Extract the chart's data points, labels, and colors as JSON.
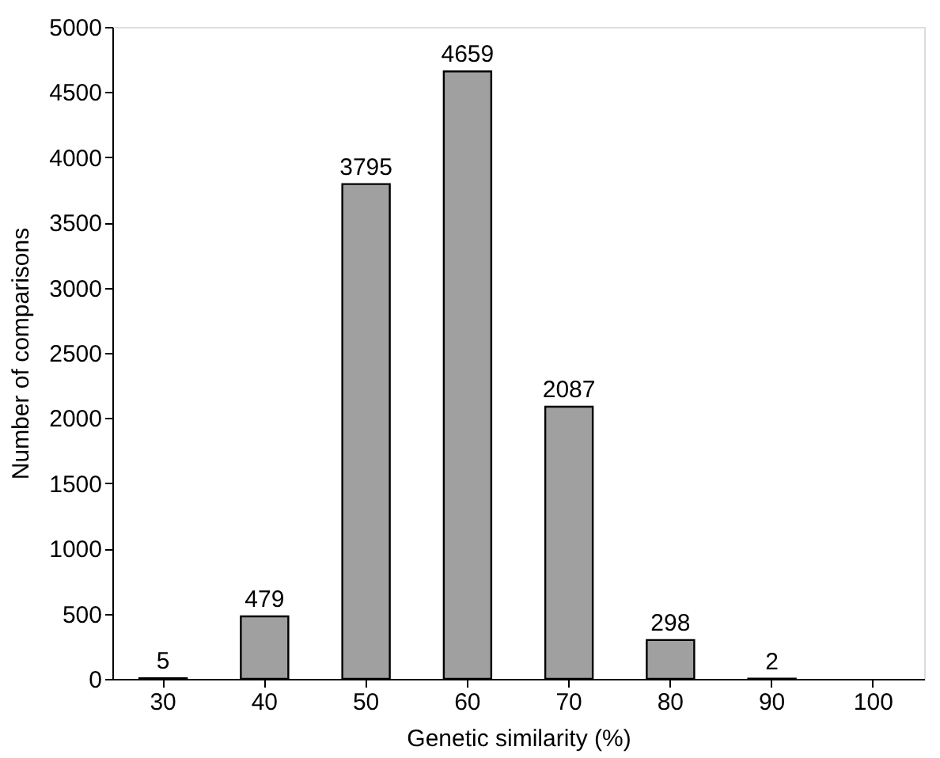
{
  "chart_data": {
    "type": "bar",
    "xlabel": "Genetic similarity (%)",
    "ylabel": "Number of comparisons",
    "categories": [
      "30",
      "40",
      "50",
      "60",
      "70",
      "80",
      "90",
      "100"
    ],
    "values": [
      5,
      479,
      3795,
      4659,
      2087,
      298,
      2,
      null
    ],
    "color": "#a0a0a0",
    "ylim": [
      0,
      5000
    ],
    "yticks": [
      0,
      500,
      1000,
      1500,
      2000,
      2500,
      3000,
      3500,
      4000,
      4500,
      5000
    ],
    "data_labels": true,
    "grid": false
  }
}
